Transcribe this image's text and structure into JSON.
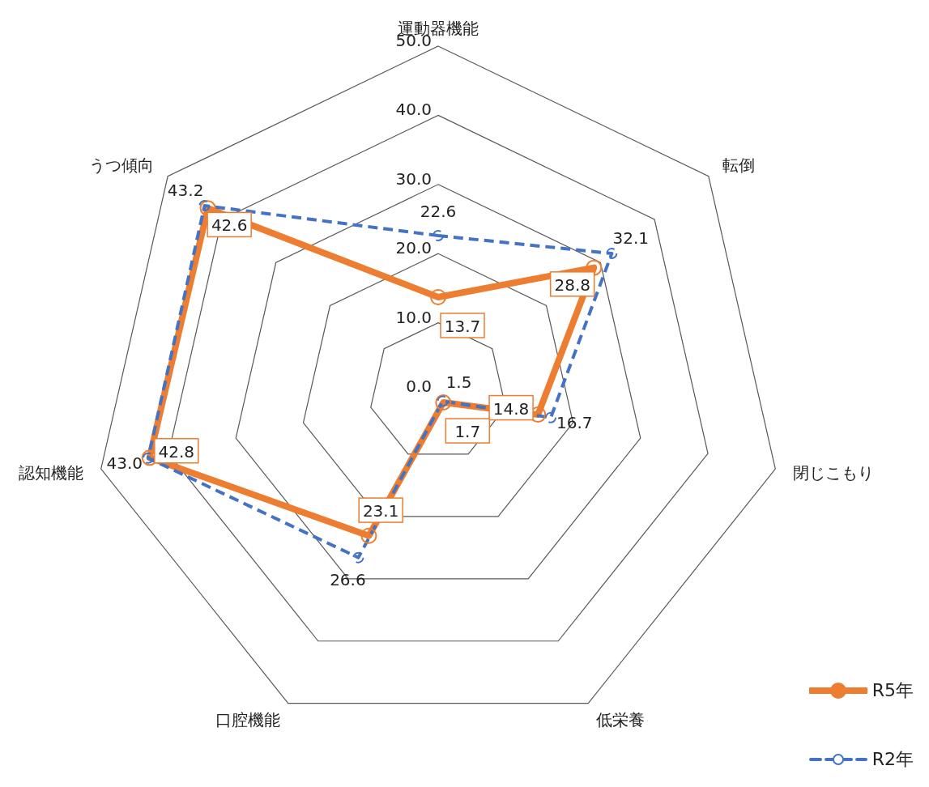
{
  "chart_data": {
    "type": "radar",
    "categories": [
      "運動器機能",
      "転倒",
      "閉じこもり",
      "低栄養",
      "口腔機能",
      "認知機能",
      "うつ傾向"
    ],
    "series": [
      {
        "name": "R5年",
        "color": "#ed7d31",
        "values": [
          13.7,
          28.8,
          14.8,
          1.7,
          23.1,
          42.8,
          42.6
        ],
        "value_labels": [
          "13.7",
          "28.8",
          "14.8",
          "1.7",
          "23.1",
          "42.8",
          "42.6"
        ],
        "line_style": "solid"
      },
      {
        "name": "R2年",
        "color": "#4472c4",
        "values": [
          22.6,
          32.1,
          16.7,
          1.5,
          26.6,
          43.0,
          43.2
        ],
        "value_labels": [
          "22.6",
          "32.1",
          "16.7",
          "1.5",
          "26.6",
          "43.0",
          "43.2"
        ],
        "line_style": "dashed"
      }
    ],
    "ylim": [
      0,
      50
    ],
    "yticks": [
      {
        "value": 0,
        "label": "0.0"
      },
      {
        "value": 10,
        "label": "10.0"
      },
      {
        "value": 20,
        "label": "20.0"
      },
      {
        "value": 30,
        "label": "30.0"
      },
      {
        "value": 40,
        "label": "40.0"
      },
      {
        "value": 50,
        "label": "50.0"
      }
    ],
    "grid": true,
    "marker": "circle",
    "legend": "bottom right"
  }
}
